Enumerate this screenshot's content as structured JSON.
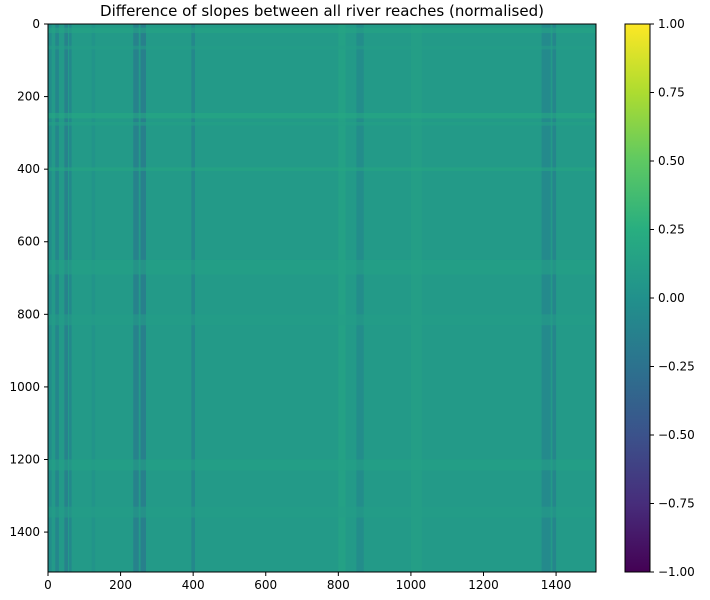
{
  "chart_data": {
    "type": "heatmap",
    "title": "Difference of slopes between all river reaches (normalised)",
    "xlabel": "",
    "ylabel": "",
    "xlim": [
      0,
      1510
    ],
    "ylim": [
      1510,
      0
    ],
    "x_ticks": [
      0,
      200,
      400,
      600,
      800,
      1000,
      1200,
      1400
    ],
    "y_ticks": [
      0,
      200,
      400,
      600,
      800,
      1000,
      1200,
      1400
    ],
    "x_tick_labels": [
      "0",
      "200",
      "400",
      "600",
      "800",
      "1000",
      "1200",
      "1400"
    ],
    "y_tick_labels": [
      "0",
      "200",
      "400",
      "600",
      "800",
      "1000",
      "1200",
      "1400"
    ],
    "colorbar": {
      "min": -1.0,
      "max": 1.0,
      "colormap": "viridis",
      "ticks": [
        1.0,
        0.75,
        0.5,
        0.25,
        0.0,
        -0.25,
        -0.5,
        -0.75,
        -1.0
      ],
      "tick_labels": [
        "1.00",
        "0.75",
        "0.50",
        "0.25",
        "0.00",
        "−0.25",
        "−0.50",
        "−0.75",
        "−1.00"
      ]
    },
    "grid": false,
    "background_value": 0.08,
    "column_bands": [
      {
        "x": [
          0,
          10
        ],
        "value": -0.05
      },
      {
        "x": [
          20,
          30
        ],
        "value": -0.12
      },
      {
        "x": [
          45,
          55
        ],
        "value": -0.15
      },
      {
        "x": [
          58,
          65
        ],
        "value": -0.1
      },
      {
        "x": [
          120,
          130
        ],
        "value": 0.02
      },
      {
        "x": [
          235,
          250
        ],
        "value": -0.15
      },
      {
        "x": [
          255,
          270
        ],
        "value": -0.18
      },
      {
        "x": [
          395,
          405
        ],
        "value": -0.1
      },
      {
        "x": [
          800,
          820
        ],
        "value": 0.15
      },
      {
        "x": [
          850,
          870
        ],
        "value": -0.05
      },
      {
        "x": [
          1000,
          1030
        ],
        "value": 0.12
      },
      {
        "x": [
          1360,
          1385
        ],
        "value": -0.08
      },
      {
        "x": [
          1390,
          1400
        ],
        "value": -0.12
      }
    ],
    "row_bands": [
      {
        "y": [
          10,
          25
        ],
        "value": 0.18
      },
      {
        "y": [
          60,
          70
        ],
        "value": 0.12
      },
      {
        "y": [
          245,
          260
        ],
        "value": 0.22
      },
      {
        "y": [
          270,
          280
        ],
        "value": 0.15
      },
      {
        "y": [
          395,
          405
        ],
        "value": 0.2
      },
      {
        "y": [
          650,
          690
        ],
        "value": 0.15
      },
      {
        "y": [
          800,
          830
        ],
        "value": 0.12
      },
      {
        "y": [
          1200,
          1230
        ],
        "value": 0.15
      },
      {
        "y": [
          1330,
          1360
        ],
        "value": 0.12
      }
    ]
  }
}
